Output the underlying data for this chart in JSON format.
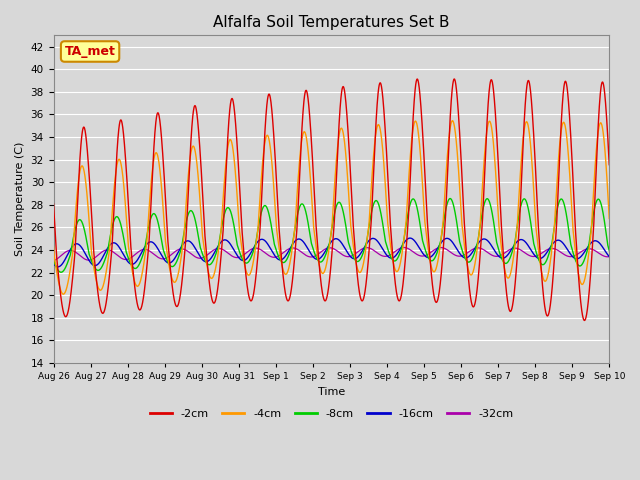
{
  "title": "Alfalfa Soil Temperatures Set B",
  "xlabel": "Time",
  "ylabel": "Soil Temperature (C)",
  "ylim": [
    14,
    43
  ],
  "xlim": [
    0,
    15
  ],
  "yticks": [
    14,
    16,
    18,
    20,
    22,
    24,
    26,
    28,
    30,
    32,
    34,
    36,
    38,
    40,
    42
  ],
  "background_color": "#d8d8d8",
  "plot_bg_color": "#d8d8d8",
  "grid_color": "#ffffff",
  "series_colors": {
    "-2cm": "#dd0000",
    "-4cm": "#ff9900",
    "-8cm": "#00cc00",
    "-16cm": "#0000cc",
    "-32cm": "#aa00aa"
  },
  "annotation": {
    "text": "TA_met",
    "fontsize": 9,
    "color": "#cc0000",
    "bbox_facecolor": "#ffff99",
    "bbox_edgecolor": "#cc8800"
  },
  "n_days": 15,
  "samples_per_day": 288,
  "base_temp": 23.5,
  "legend_labels": [
    "-2cm",
    "-4cm",
    "-8cm",
    "-16cm",
    "-32cm"
  ],
  "tick_labels": [
    "Aug 26",
    "Aug 27",
    "Aug 28",
    "Aug 29",
    "Aug 30",
    "Aug 31",
    "Sep 1",
    "Sep 2",
    "Sep 3",
    "Sep 4",
    "Sep 5",
    "Sep 6",
    "Sep 7",
    "Sep 8",
    "Sep 9",
    "Sep 10"
  ]
}
